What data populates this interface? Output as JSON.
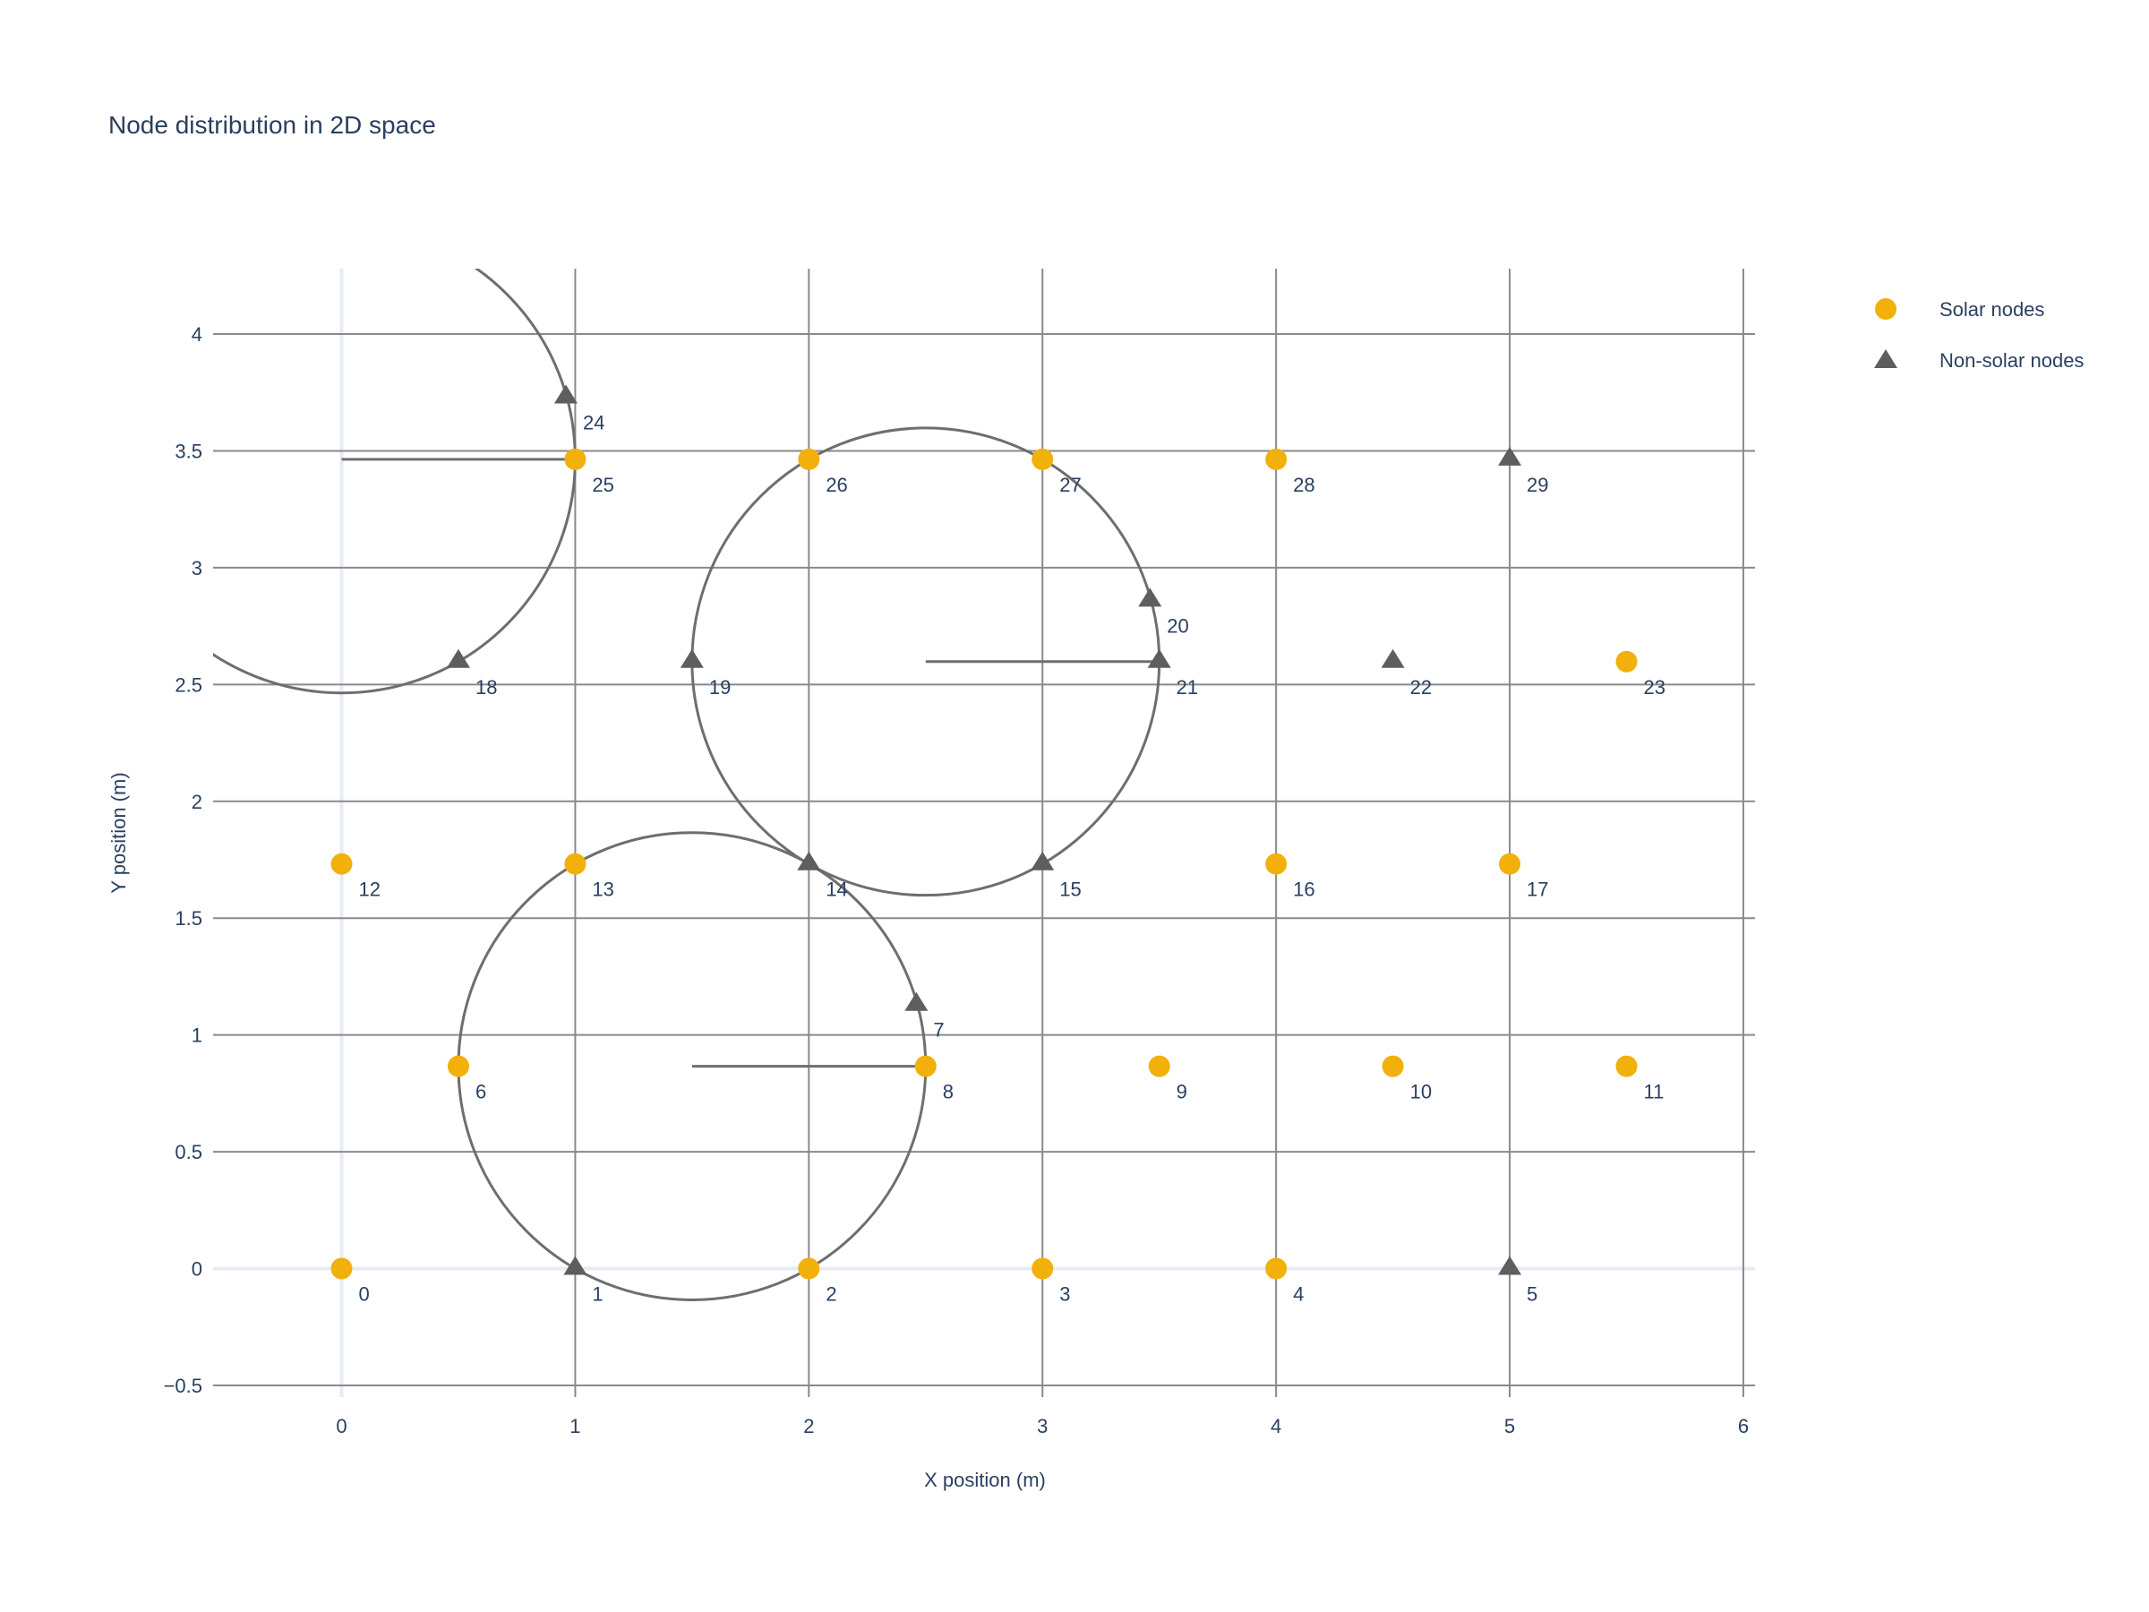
{
  "colors": {
    "solar": "#F2B00A",
    "non_solar": "#5E5E5E",
    "grid": "#8A8A8A",
    "zeroline": "#E5ECF6",
    "circle": "#6E6E6E",
    "text": "#2a3f5f"
  },
  "chart_data": {
    "type": "scatter",
    "title": "Node distribution in 2D space",
    "xlabel": "X position (m)",
    "ylabel": "Y position (m)",
    "xlim": [
      -0.55,
      6.05
    ],
    "ylim": [
      -0.55,
      4.28
    ],
    "x_ticks": [
      0,
      1,
      2,
      3,
      4,
      5,
      6
    ],
    "x_tick_labels": [
      "0",
      "1",
      "2",
      "3",
      "4",
      "5",
      "6"
    ],
    "y_ticks": [
      -0.5,
      0,
      0.5,
      1,
      1.5,
      2,
      2.5,
      3,
      3.5,
      4
    ],
    "y_tick_labels": [
      "−0.5",
      "0",
      "0.5",
      "1",
      "1.5",
      "2",
      "2.5",
      "3",
      "3.5",
      "4"
    ],
    "grid": true,
    "legend_position": "top-right",
    "series": [
      {
        "name": "Solar nodes",
        "marker": "circle",
        "points": [
          {
            "id": "0",
            "x": 0,
            "y": 0
          },
          {
            "id": "2",
            "x": 2,
            "y": 0
          },
          {
            "id": "3",
            "x": 3,
            "y": 0
          },
          {
            "id": "4",
            "x": 4,
            "y": 0
          },
          {
            "id": "6",
            "x": 0.5,
            "y": 0.866
          },
          {
            "id": "8",
            "x": 2.5,
            "y": 0.866
          },
          {
            "id": "9",
            "x": 3.5,
            "y": 0.866
          },
          {
            "id": "10",
            "x": 4.5,
            "y": 0.866
          },
          {
            "id": "11",
            "x": 5.5,
            "y": 0.866
          },
          {
            "id": "12",
            "x": 0,
            "y": 1.732
          },
          {
            "id": "13",
            "x": 1,
            "y": 1.732
          },
          {
            "id": "16",
            "x": 4,
            "y": 1.732
          },
          {
            "id": "17",
            "x": 5,
            "y": 1.732
          },
          {
            "id": "23",
            "x": 5.5,
            "y": 2.598
          },
          {
            "id": "25",
            "x": 1,
            "y": 3.464
          },
          {
            "id": "26",
            "x": 2,
            "y": 3.464
          },
          {
            "id": "27",
            "x": 3,
            "y": 3.464
          },
          {
            "id": "28",
            "x": 4,
            "y": 3.464
          }
        ]
      },
      {
        "name": "Non-solar nodes",
        "marker": "triangle-up",
        "points": [
          {
            "id": "1",
            "x": 1,
            "y": 0
          },
          {
            "id": "5",
            "x": 5,
            "y": 0
          },
          {
            "id": "7",
            "x": 2.46,
            "y": 1.13
          },
          {
            "id": "14",
            "x": 2,
            "y": 1.732
          },
          {
            "id": "15",
            "x": 3,
            "y": 1.732
          },
          {
            "id": "18",
            "x": 0.5,
            "y": 2.598
          },
          {
            "id": "19",
            "x": 1.5,
            "y": 2.598
          },
          {
            "id": "20",
            "x": 3.46,
            "y": 2.86
          },
          {
            "id": "21",
            "x": 3.5,
            "y": 2.598
          },
          {
            "id": "22",
            "x": 4.5,
            "y": 2.598
          },
          {
            "id": "24",
            "x": 0.96,
            "y": 3.73
          },
          {
            "id": "29",
            "x": 5,
            "y": 3.464
          }
        ]
      }
    ],
    "circles": [
      {
        "cx": 1.5,
        "cy": 0.866,
        "r": 1.0
      },
      {
        "cx": 2.5,
        "cy": 2.598,
        "r": 1.0
      },
      {
        "cx": 0.0,
        "cy": 3.464,
        "r": 1.0
      }
    ]
  }
}
